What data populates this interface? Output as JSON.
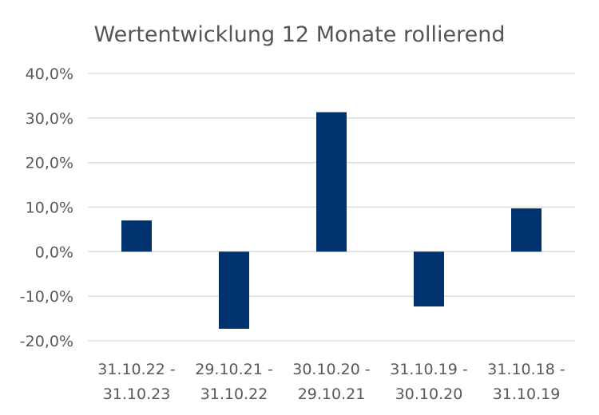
{
  "chart_data": {
    "type": "bar",
    "title": "Wertentwicklung 12 Monate rollierend",
    "xlabel": "",
    "ylabel": "",
    "categories": [
      [
        "31.10.22 -",
        "31.10.23"
      ],
      [
        "29.10.21 -",
        "31.10.22"
      ],
      [
        "30.10.20 -",
        "29.10.21"
      ],
      [
        "31.10.19 -",
        "30.10.20"
      ],
      [
        "31.10.18 -",
        "31.10.19"
      ]
    ],
    "values": [
      7.0,
      -17.3,
      31.3,
      -12.3,
      9.7
    ],
    "ylim": [
      -20,
      40
    ],
    "yticks": [
      40,
      30,
      20,
      10,
      0,
      -10,
      -20
    ],
    "ytick_labels": [
      "40,0%",
      "30,0%",
      "20,0%",
      "10,0%",
      "0,0%",
      "-10,0%",
      "-20,0%"
    ],
    "grid": true,
    "legend": "none",
    "bar_color": "#003270",
    "grid_color": "#d9d9d9"
  }
}
